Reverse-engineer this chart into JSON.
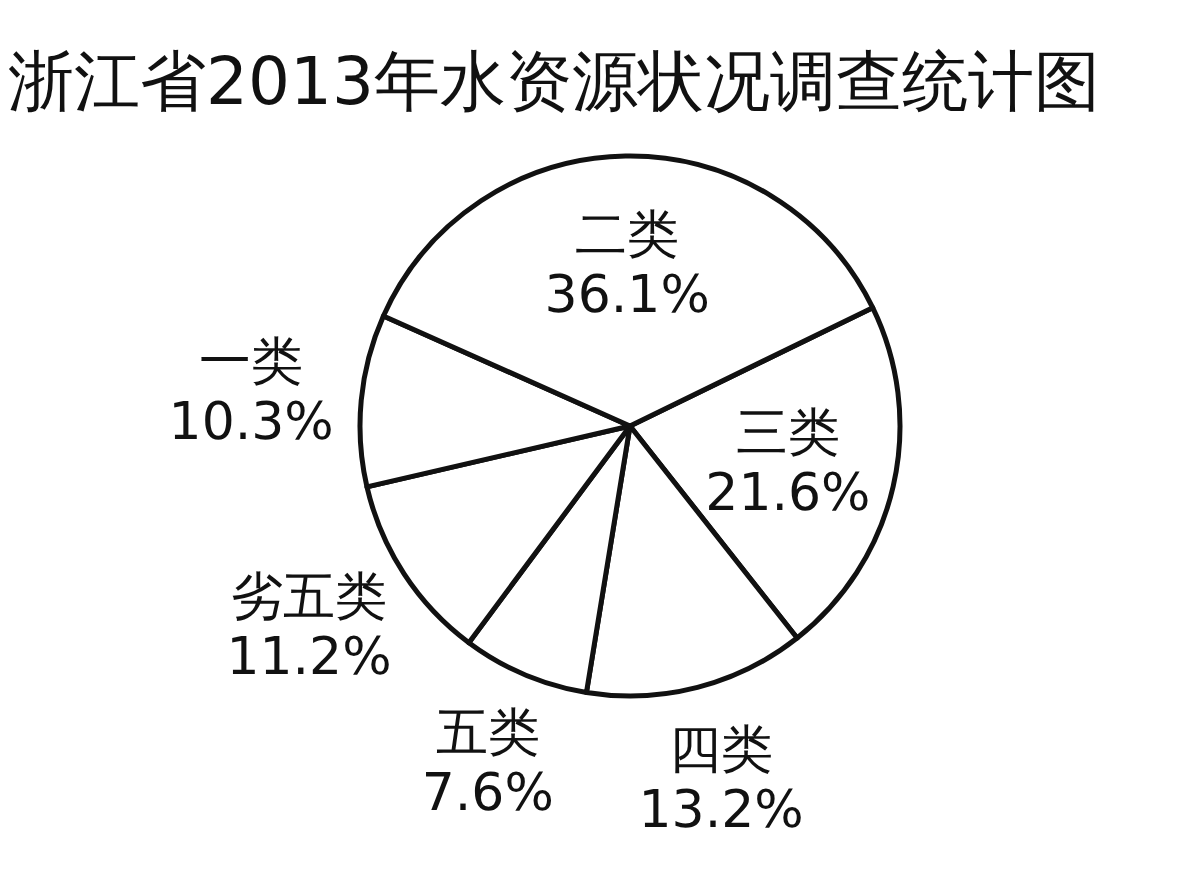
{
  "chart_data": {
    "type": "pie",
    "title": "浙江省2013年水资源状况调查统计图",
    "categories": [
      "三类",
      "四类",
      "五类",
      "劣五类",
      "一类",
      "二类"
    ],
    "values": [
      21.6,
      13.2,
      7.6,
      11.2,
      10.3,
      36.1
    ],
    "value_labels": [
      "21.6%",
      "13.2%",
      "7.6%",
      "11.2%",
      "10.3%",
      "36.1%"
    ],
    "colors": [
      "#ffffff",
      "#ffffff",
      "#ffffff",
      "#ffffff",
      "#ffffff",
      "#ffffff"
    ]
  }
}
